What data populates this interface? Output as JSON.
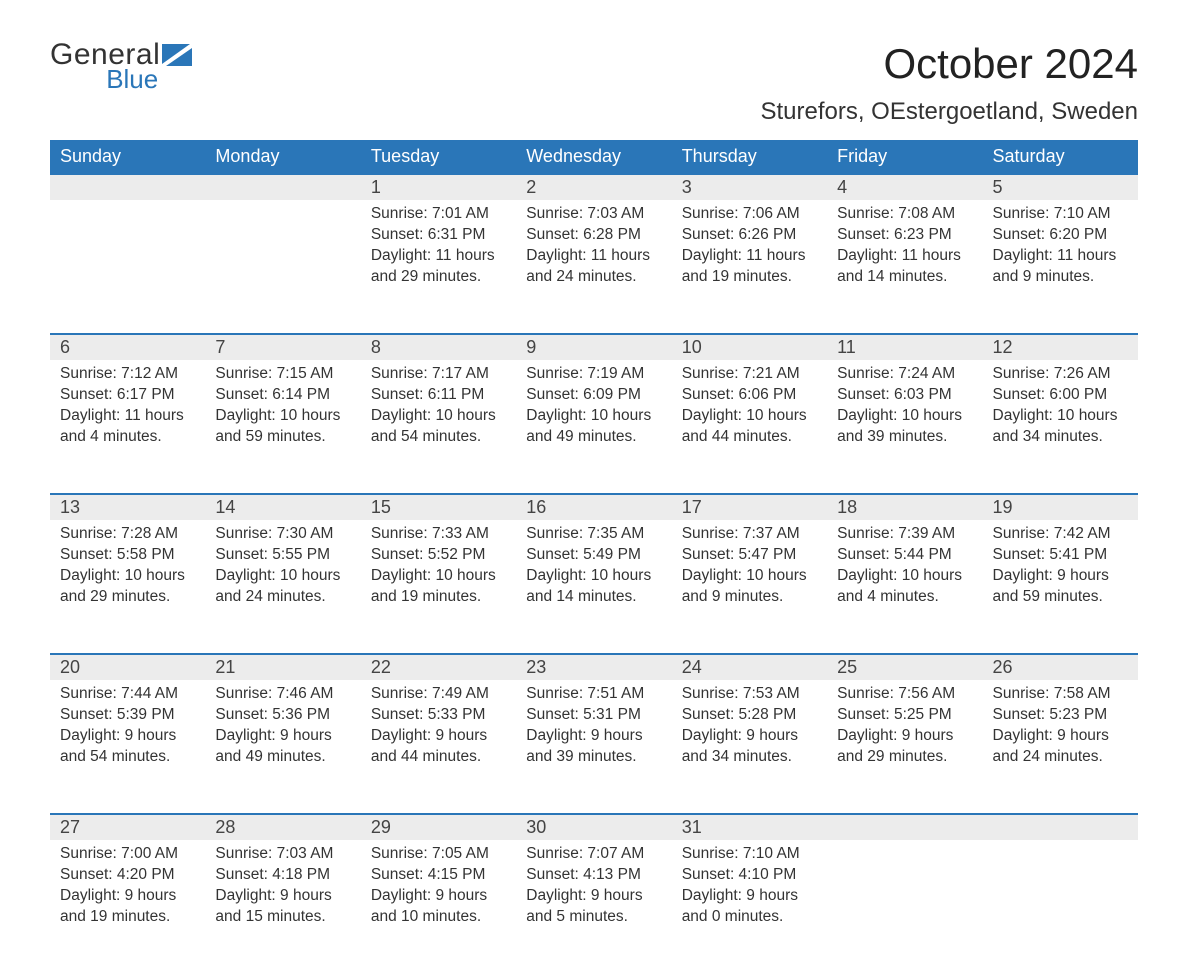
{
  "brand": {
    "general": "General",
    "blue": "Blue",
    "icon_color": "#2a76b8"
  },
  "title": "October 2024",
  "location": "Sturefors, OEstergoetland, Sweden",
  "colors": {
    "header_bg": "#2a76b8",
    "header_text": "#ffffff",
    "daynum_bg": "#ececec",
    "daynum_border": "#2a76b8",
    "body_text": "#333333",
    "page_bg": "#ffffff"
  },
  "typography": {
    "title_fontsize": 42,
    "location_fontsize": 24,
    "dayheader_fontsize": 18,
    "daynum_fontsize": 18,
    "cell_fontsize": 15.5
  },
  "day_headers": [
    "Sunday",
    "Monday",
    "Tuesday",
    "Wednesday",
    "Thursday",
    "Friday",
    "Saturday"
  ],
  "weeks": [
    [
      null,
      null,
      {
        "num": "1",
        "sunrise": "Sunrise: 7:01 AM",
        "sunset": "Sunset: 6:31 PM",
        "daylight": "Daylight: 11 hours and 29 minutes."
      },
      {
        "num": "2",
        "sunrise": "Sunrise: 7:03 AM",
        "sunset": "Sunset: 6:28 PM",
        "daylight": "Daylight: 11 hours and 24 minutes."
      },
      {
        "num": "3",
        "sunrise": "Sunrise: 7:06 AM",
        "sunset": "Sunset: 6:26 PM",
        "daylight": "Daylight: 11 hours and 19 minutes."
      },
      {
        "num": "4",
        "sunrise": "Sunrise: 7:08 AM",
        "sunset": "Sunset: 6:23 PM",
        "daylight": "Daylight: 11 hours and 14 minutes."
      },
      {
        "num": "5",
        "sunrise": "Sunrise: 7:10 AM",
        "sunset": "Sunset: 6:20 PM",
        "daylight": "Daylight: 11 hours and 9 minutes."
      }
    ],
    [
      {
        "num": "6",
        "sunrise": "Sunrise: 7:12 AM",
        "sunset": "Sunset: 6:17 PM",
        "daylight": "Daylight: 11 hours and 4 minutes."
      },
      {
        "num": "7",
        "sunrise": "Sunrise: 7:15 AM",
        "sunset": "Sunset: 6:14 PM",
        "daylight": "Daylight: 10 hours and 59 minutes."
      },
      {
        "num": "8",
        "sunrise": "Sunrise: 7:17 AM",
        "sunset": "Sunset: 6:11 PM",
        "daylight": "Daylight: 10 hours and 54 minutes."
      },
      {
        "num": "9",
        "sunrise": "Sunrise: 7:19 AM",
        "sunset": "Sunset: 6:09 PM",
        "daylight": "Daylight: 10 hours and 49 minutes."
      },
      {
        "num": "10",
        "sunrise": "Sunrise: 7:21 AM",
        "sunset": "Sunset: 6:06 PM",
        "daylight": "Daylight: 10 hours and 44 minutes."
      },
      {
        "num": "11",
        "sunrise": "Sunrise: 7:24 AM",
        "sunset": "Sunset: 6:03 PM",
        "daylight": "Daylight: 10 hours and 39 minutes."
      },
      {
        "num": "12",
        "sunrise": "Sunrise: 7:26 AM",
        "sunset": "Sunset: 6:00 PM",
        "daylight": "Daylight: 10 hours and 34 minutes."
      }
    ],
    [
      {
        "num": "13",
        "sunrise": "Sunrise: 7:28 AM",
        "sunset": "Sunset: 5:58 PM",
        "daylight": "Daylight: 10 hours and 29 minutes."
      },
      {
        "num": "14",
        "sunrise": "Sunrise: 7:30 AM",
        "sunset": "Sunset: 5:55 PM",
        "daylight": "Daylight: 10 hours and 24 minutes."
      },
      {
        "num": "15",
        "sunrise": "Sunrise: 7:33 AM",
        "sunset": "Sunset: 5:52 PM",
        "daylight": "Daylight: 10 hours and 19 minutes."
      },
      {
        "num": "16",
        "sunrise": "Sunrise: 7:35 AM",
        "sunset": "Sunset: 5:49 PM",
        "daylight": "Daylight: 10 hours and 14 minutes."
      },
      {
        "num": "17",
        "sunrise": "Sunrise: 7:37 AM",
        "sunset": "Sunset: 5:47 PM",
        "daylight": "Daylight: 10 hours and 9 minutes."
      },
      {
        "num": "18",
        "sunrise": "Sunrise: 7:39 AM",
        "sunset": "Sunset: 5:44 PM",
        "daylight": "Daylight: 10 hours and 4 minutes."
      },
      {
        "num": "19",
        "sunrise": "Sunrise: 7:42 AM",
        "sunset": "Sunset: 5:41 PM",
        "daylight": "Daylight: 9 hours and 59 minutes."
      }
    ],
    [
      {
        "num": "20",
        "sunrise": "Sunrise: 7:44 AM",
        "sunset": "Sunset: 5:39 PM",
        "daylight": "Daylight: 9 hours and 54 minutes."
      },
      {
        "num": "21",
        "sunrise": "Sunrise: 7:46 AM",
        "sunset": "Sunset: 5:36 PM",
        "daylight": "Daylight: 9 hours and 49 minutes."
      },
      {
        "num": "22",
        "sunrise": "Sunrise: 7:49 AM",
        "sunset": "Sunset: 5:33 PM",
        "daylight": "Daylight: 9 hours and 44 minutes."
      },
      {
        "num": "23",
        "sunrise": "Sunrise: 7:51 AM",
        "sunset": "Sunset: 5:31 PM",
        "daylight": "Daylight: 9 hours and 39 minutes."
      },
      {
        "num": "24",
        "sunrise": "Sunrise: 7:53 AM",
        "sunset": "Sunset: 5:28 PM",
        "daylight": "Daylight: 9 hours and 34 minutes."
      },
      {
        "num": "25",
        "sunrise": "Sunrise: 7:56 AM",
        "sunset": "Sunset: 5:25 PM",
        "daylight": "Daylight: 9 hours and 29 minutes."
      },
      {
        "num": "26",
        "sunrise": "Sunrise: 7:58 AM",
        "sunset": "Sunset: 5:23 PM",
        "daylight": "Daylight: 9 hours and 24 minutes."
      }
    ],
    [
      {
        "num": "27",
        "sunrise": "Sunrise: 7:00 AM",
        "sunset": "Sunset: 4:20 PM",
        "daylight": "Daylight: 9 hours and 19 minutes."
      },
      {
        "num": "28",
        "sunrise": "Sunrise: 7:03 AM",
        "sunset": "Sunset: 4:18 PM",
        "daylight": "Daylight: 9 hours and 15 minutes."
      },
      {
        "num": "29",
        "sunrise": "Sunrise: 7:05 AM",
        "sunset": "Sunset: 4:15 PM",
        "daylight": "Daylight: 9 hours and 10 minutes."
      },
      {
        "num": "30",
        "sunrise": "Sunrise: 7:07 AM",
        "sunset": "Sunset: 4:13 PM",
        "daylight": "Daylight: 9 hours and 5 minutes."
      },
      {
        "num": "31",
        "sunrise": "Sunrise: 7:10 AM",
        "sunset": "Sunset: 4:10 PM",
        "daylight": "Daylight: 9 hours and 0 minutes."
      },
      null,
      null
    ]
  ]
}
